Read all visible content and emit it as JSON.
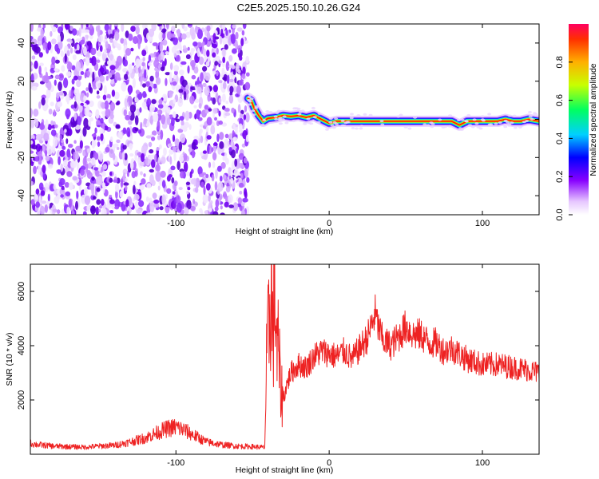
{
  "title": "C2E5.2025.150.10.26.G24",
  "chart_data": [
    {
      "type": "heatmap",
      "xlabel": "Height of straight line (km)",
      "ylabel": "Frequency (Hz)",
      "xlim": [
        -195,
        137
      ],
      "ylim": [
        -50,
        50
      ],
      "xticks": [
        -100,
        0,
        100
      ],
      "yticks": [
        -40,
        -20,
        0,
        20,
        40
      ],
      "grid": false,
      "noise_region_x": [
        -195,
        -53
      ],
      "ridge": {
        "x": [
          -53,
          -51,
          -49,
          -46,
          -43,
          -40,
          -35,
          -30,
          -25,
          -20,
          -15,
          -10,
          -5,
          0,
          5,
          10,
          20,
          30,
          40,
          50,
          60,
          70,
          80,
          85,
          90,
          95,
          100,
          105,
          110,
          115,
          120,
          125,
          130,
          137
        ],
        "y": [
          11,
          10,
          6,
          2,
          -1,
          0.5,
          1,
          2,
          1.5,
          2,
          1,
          2,
          0,
          -2,
          -1,
          -1,
          -1,
          -1,
          -1,
          -1,
          -1,
          -1,
          -1,
          -3,
          -1,
          -1,
          -1,
          -1,
          -1,
          0,
          -1,
          -1,
          0,
          -1
        ]
      },
      "colorbar": {
        "label": "Normalized spectral amplitude",
        "ticks": [
          0.0,
          0.2,
          0.4,
          0.6,
          0.8
        ],
        "range": [
          0,
          1
        ]
      }
    },
    {
      "type": "line",
      "xlabel": "Height of straight line (km)",
      "ylabel": "SNR (10 * v/v)",
      "xlim": [
        -195,
        137
      ],
      "ylim": [
        0,
        7000
      ],
      "xticks": [
        -100,
        0,
        100
      ],
      "yticks": [
        2000,
        4000,
        6000
      ],
      "grid": false,
      "series": [
        {
          "color": "#ee2222",
          "x": [
            -195,
            -190,
            -180,
            -170,
            -160,
            -150,
            -140,
            -130,
            -120,
            -110,
            -105,
            -100,
            -95,
            -90,
            -85,
            -80,
            -70,
            -60,
            -50,
            -42,
            -41,
            -39,
            -38,
            -37,
            -36,
            -35,
            -34,
            -33,
            -32,
            -30,
            -28,
            -25,
            -20,
            -15,
            -10,
            -5,
            0,
            5,
            10,
            15,
            20,
            25,
            28,
            30,
            32,
            35,
            40,
            45,
            50,
            55,
            60,
            65,
            70,
            75,
            80,
            85,
            90,
            95,
            100,
            110,
            120,
            130,
            137
          ],
          "y": [
            400,
            350,
            300,
            280,
            260,
            300,
            330,
            450,
            600,
            850,
            950,
            1000,
            900,
            750,
            600,
            450,
            350,
            300,
            280,
            250,
            3000,
            5000,
            6500,
            4500,
            5200,
            6000,
            3500,
            4000,
            2500,
            2000,
            2500,
            3000,
            3300,
            3200,
            3600,
            3800,
            3700,
            3600,
            3800,
            3500,
            3900,
            4300,
            4800,
            5200,
            4700,
            4200,
            4000,
            4300,
            4700,
            4400,
            4400,
            4100,
            4100,
            3800,
            3900,
            3700,
            3500,
            3400,
            3300,
            3300,
            3200,
            3100,
            3000
          ]
        }
      ]
    }
  ]
}
